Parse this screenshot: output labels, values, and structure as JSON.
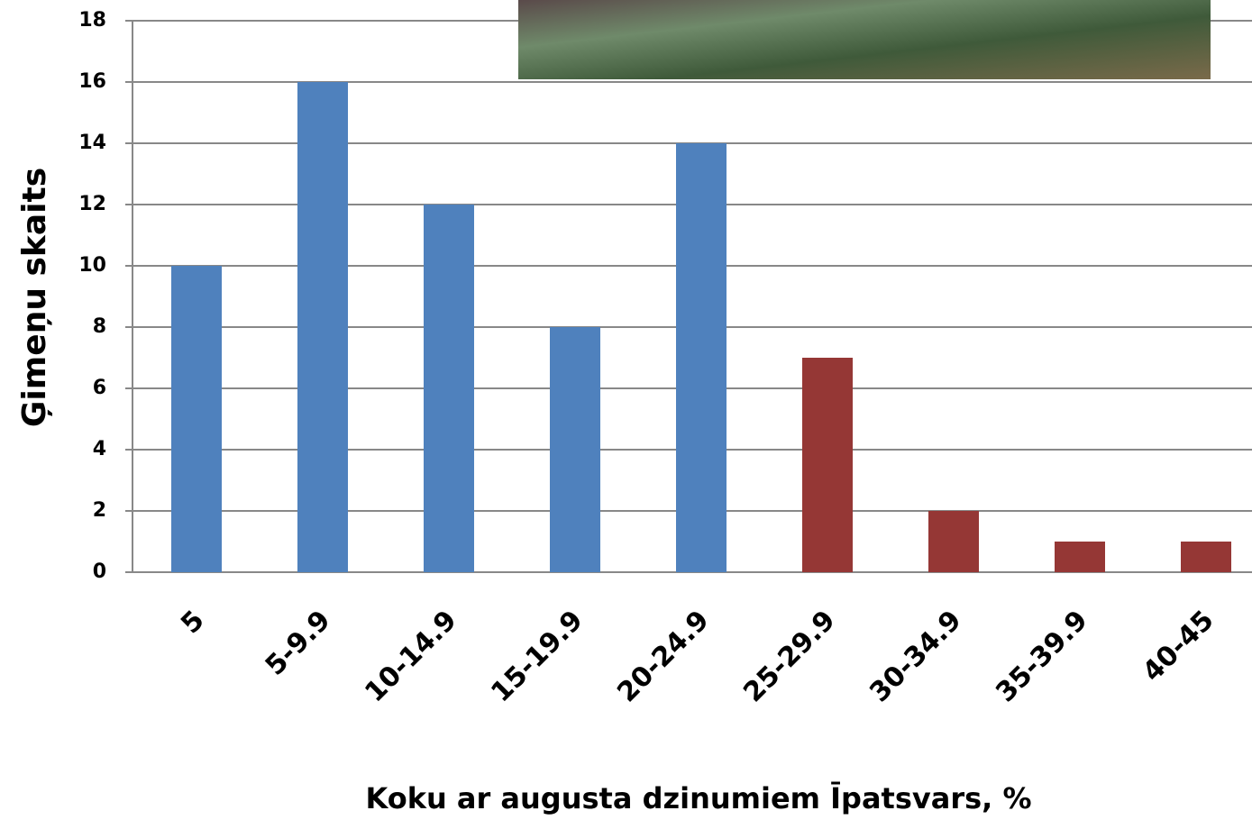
{
  "chart_data": {
    "type": "bar",
    "x_label": "Koku ar augusta dzinumiem Īpatsvars, %",
    "y_label": "Ģimeņu skaits",
    "categories": [
      "5",
      "5-9.9",
      "10-14.9",
      "15-19.9",
      "20-24.9",
      "25-29.9",
      "30-34.9",
      "35-39.9",
      "40-45"
    ],
    "values": [
      10,
      16,
      12,
      8,
      14,
      7,
      2,
      1,
      1
    ],
    "colors": [
      "#4f81bd",
      "#4f81bd",
      "#4f81bd",
      "#4f81bd",
      "#4f81bd",
      "#953735",
      "#953735",
      "#953735",
      "#953735"
    ],
    "ylim": [
      0,
      18
    ],
    "yticks": [
      0,
      2,
      4,
      6,
      8,
      10,
      12,
      14,
      16,
      18
    ],
    "grid": true
  }
}
